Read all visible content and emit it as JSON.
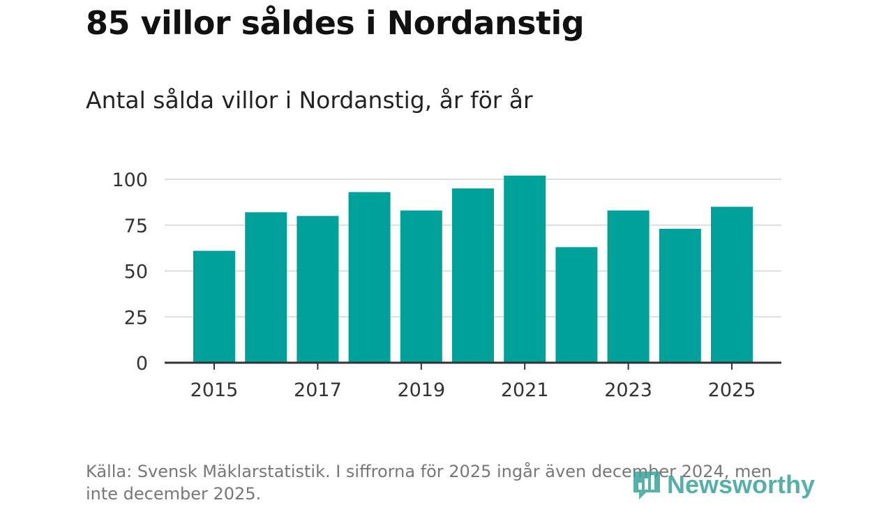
{
  "header": {
    "title": "85 villor såldes i Nordanstig",
    "subtitle": "Antal sålda villor i Nordanstig, år för år"
  },
  "chart_data": {
    "type": "bar",
    "categories": [
      "2015",
      "2016",
      "2017",
      "2018",
      "2019",
      "2020",
      "2021",
      "2022",
      "2023",
      "2024",
      "2025"
    ],
    "values": [
      61,
      82,
      80,
      93,
      83,
      95,
      102,
      63,
      83,
      73,
      85
    ],
    "x_tick_labels": [
      "2015",
      "2017",
      "2019",
      "2021",
      "2023",
      "2025"
    ],
    "y_ticks": [
      0,
      25,
      50,
      75,
      100
    ],
    "ylim": [
      0,
      100
    ],
    "xlabel": "",
    "ylabel": "",
    "grid": true,
    "bar_color": "#00a19a"
  },
  "footer": {
    "source": "Källa: Svensk Mäklarstatistik. I siffrorna för 2025 ingår även december 2024, men inte december 2025.",
    "logo_text": "Newsworthy"
  },
  "colors": {
    "bar": "#00a19a",
    "grid": "#dddddd",
    "axis": "#333333",
    "logo": "#3aa39a"
  }
}
